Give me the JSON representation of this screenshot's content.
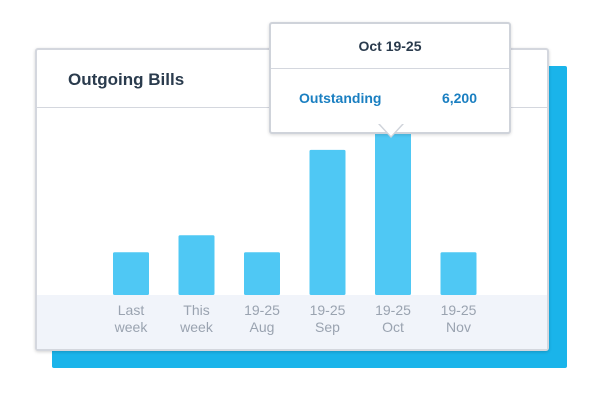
{
  "card": {
    "title": "Outgoing Bills"
  },
  "tooltip": {
    "period": "Oct 19-25",
    "label": "Outstanding",
    "value": "6,200"
  },
  "colors": {
    "bar": "#4fc8f4",
    "shadow": "#1ab4ea",
    "tooltip_text": "#1a7fc1",
    "axis_band": "#f1f4fa"
  },
  "chart_data": {
    "type": "bar",
    "categories": [
      [
        "Last",
        "week"
      ],
      [
        "This",
        "week"
      ],
      [
        "19-25",
        "Aug"
      ],
      [
        "19-25",
        "Sep"
      ],
      [
        "19-25",
        "Oct"
      ],
      [
        "19-25",
        "Nov"
      ]
    ],
    "values": [
      1500,
      2100,
      1500,
      5100,
      6200,
      1500
    ],
    "ylim": [
      0,
      6500
    ],
    "grid": false,
    "highlighted_category_index": 4
  }
}
